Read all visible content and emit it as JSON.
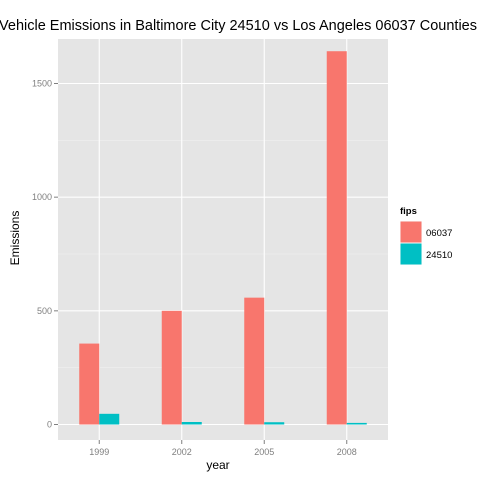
{
  "chart_data": {
    "type": "bar",
    "title": "Vehicle Emissions in Baltimore City 24510 vs Los Angeles 06037 Counties",
    "xlabel": "year",
    "ylabel": "Emissions",
    "categories": [
      "1999",
      "2002",
      "2005",
      "2008"
    ],
    "series": [
      {
        "name": "06037",
        "color": "#F8766D",
        "values": [
          356,
          500,
          558,
          1642
        ]
      },
      {
        "name": "24510",
        "color": "#00BFC4",
        "values": [
          47,
          11,
          10,
          7
        ]
      }
    ],
    "ylim": [
      0,
      1760
    ],
    "yticks": [
      0,
      500,
      1000,
      1500
    ],
    "grid": true,
    "legend": {
      "title": "fips",
      "position": "right"
    },
    "panel_background": "#E5E5E5",
    "grid_color": "#FFFFFF"
  }
}
